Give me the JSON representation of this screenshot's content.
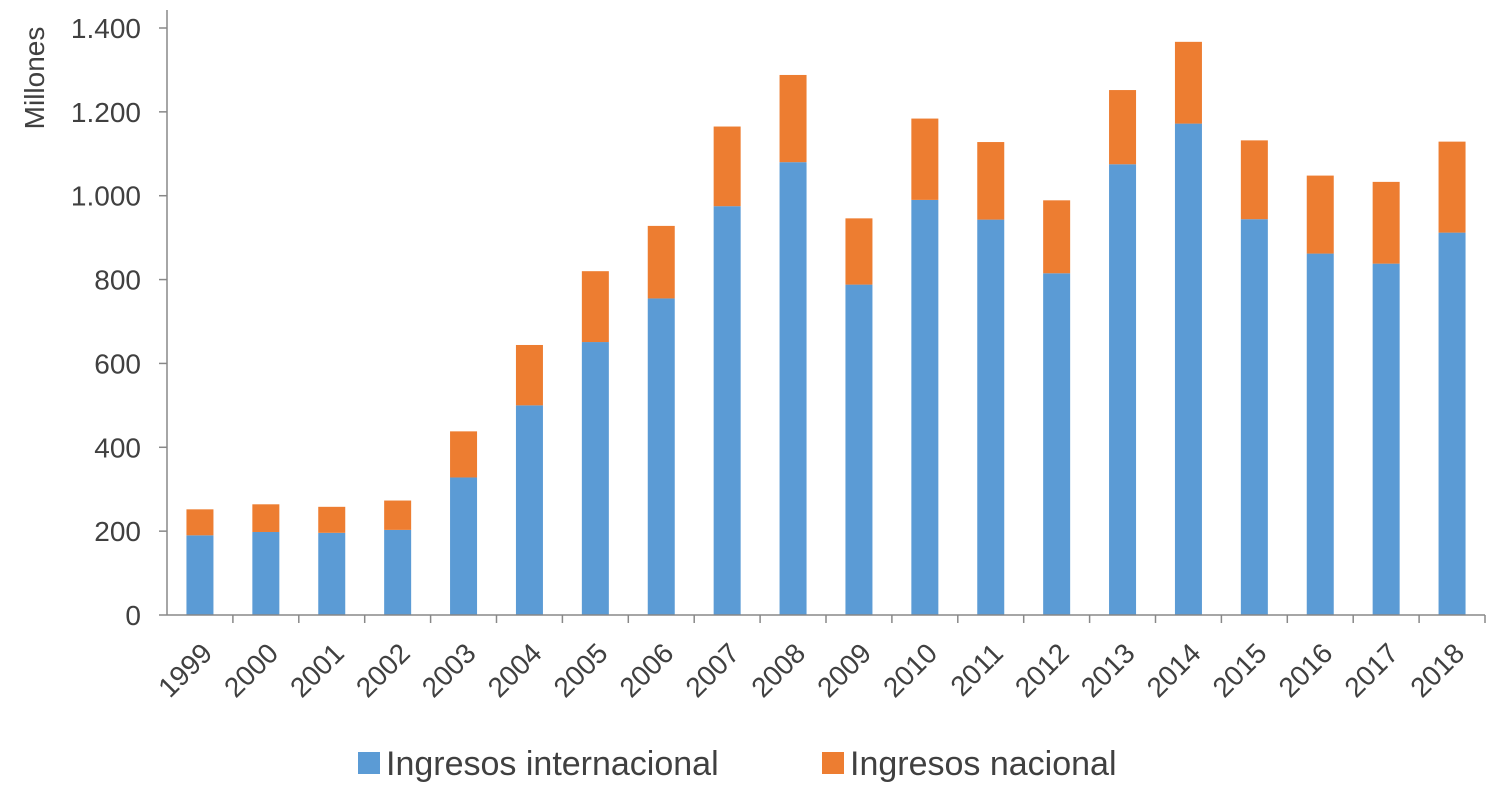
{
  "chart_data": {
    "type": "bar",
    "stacked": true,
    "categories": [
      "1999",
      "2000",
      "2001",
      "2002",
      "2003",
      "2004",
      "2005",
      "2006",
      "2007",
      "2008",
      "2009",
      "2010",
      "2011",
      "2012",
      "2013",
      "2014",
      "2015",
      "2016",
      "2017",
      "2018"
    ],
    "series": [
      {
        "name": "Ingresos internacional",
        "color": "#5B9BD5",
        "values": [
          190,
          198,
          196,
          203,
          328,
          500,
          651,
          755,
          975,
          1080,
          788,
          990,
          943,
          815,
          1075,
          1172,
          944,
          862,
          838,
          912
        ]
      },
      {
        "name": "Ingresos nacional",
        "color": "#ED7D31",
        "values": [
          62,
          66,
          62,
          70,
          110,
          144,
          169,
          173,
          190,
          208,
          158,
          194,
          185,
          174,
          177,
          195,
          188,
          186,
          195,
          217
        ]
      }
    ],
    "ylabel": "Millones",
    "xlabel": "",
    "ylim": [
      0,
      1400
    ],
    "yticks": [
      0,
      200,
      400,
      600,
      800,
      1000,
      1200,
      1400
    ],
    "ytick_labels": [
      "0",
      "200",
      "400",
      "600",
      "800",
      "1.000",
      "1.200",
      "1.400"
    ],
    "grid": false,
    "legend_position": "bottom"
  }
}
